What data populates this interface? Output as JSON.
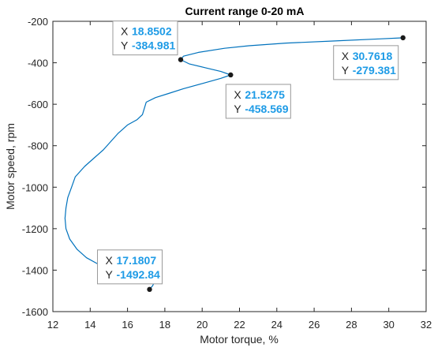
{
  "chart_data": {
    "type": "line",
    "title": "Current range 0-20 mA",
    "xlabel": "Motor torque, %",
    "ylabel": "Motor speed, rpm",
    "xlim": [
      12,
      32
    ],
    "ylim": [
      -1600,
      -200
    ],
    "xticks": [
      12,
      14,
      16,
      18,
      20,
      22,
      24,
      26,
      28,
      30,
      32
    ],
    "yticks": [
      -200,
      -400,
      -600,
      -800,
      -1000,
      -1200,
      -1400,
      -1600
    ],
    "grid": false,
    "line_color": "#0072BD",
    "datatip_value_color": "#1E9BE6",
    "series": [
      {
        "x": [
          30.7618,
          29.5,
          27,
          24.5,
          22.5,
          21.2,
          19.8,
          19.0,
          18.8502,
          19.3,
          20.2,
          21.0,
          21.5275,
          21.0,
          20.0,
          19.0,
          18.2,
          17.5,
          17.0,
          16.9,
          16.8,
          16.5,
          16.0,
          15.5,
          15.1,
          14.7,
          14.2,
          13.7,
          13.2,
          13.0,
          12.8,
          12.7,
          12.65,
          12.7,
          12.9,
          13.3,
          13.8,
          14.4,
          15.0,
          15.6,
          16.2,
          16.7,
          17.0,
          17.3,
          17.4,
          17.35,
          17.25,
          17.1807
        ],
        "y": [
          -279.381,
          -285,
          -295,
          -305,
          -318,
          -330,
          -350,
          -368,
          -384.981,
          -405,
          -425,
          -442,
          -458.569,
          -475,
          -500,
          -525,
          -548,
          -568,
          -590,
          -620,
          -650,
          -675,
          -700,
          -740,
          -780,
          -820,
          -860,
          -900,
          -950,
          -1000,
          -1050,
          -1100,
          -1150,
          -1200,
          -1250,
          -1300,
          -1340,
          -1370,
          -1395,
          -1415,
          -1430,
          -1440,
          -1448,
          -1455,
          -1465,
          -1475,
          -1485,
          -1492.84
        ]
      }
    ],
    "datatips": [
      {
        "x_label": "X",
        "y_label": "Y",
        "x": "18.8502",
        "y": "-384.981"
      },
      {
        "x_label": "X",
        "y_label": "Y",
        "x": "30.7618",
        "y": "-279.381"
      },
      {
        "x_label": "X",
        "y_label": "Y",
        "x": "21.5275",
        "y": "-458.569"
      },
      {
        "x_label": "X",
        "y_label": "Y",
        "x": "17.1807",
        "y": "-1492.84"
      }
    ]
  }
}
